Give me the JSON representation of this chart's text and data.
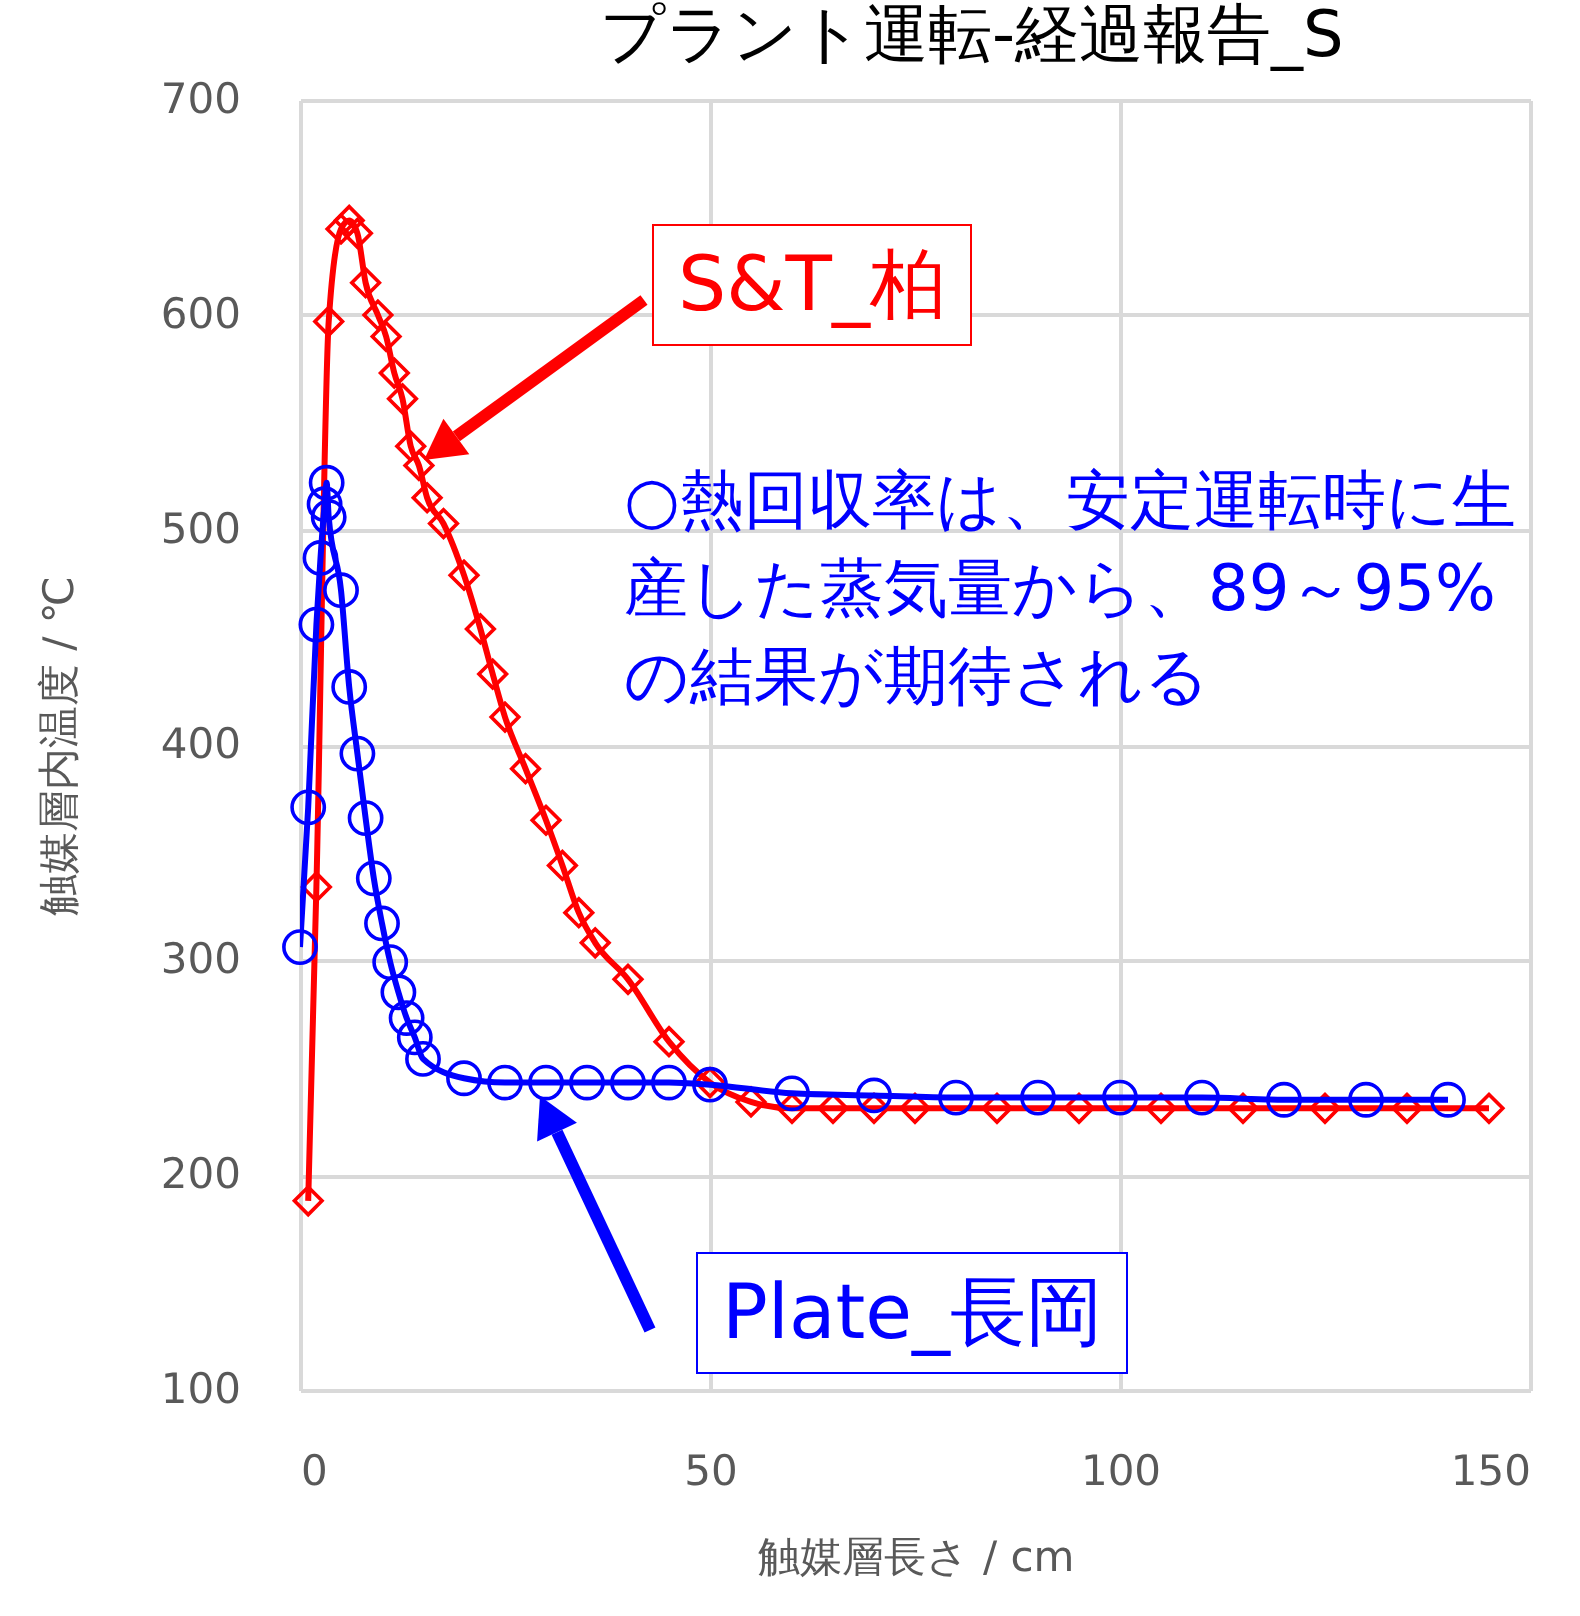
{
  "chart_data": {
    "type": "line",
    "title": "プラント運転-経過報告_S",
    "xlabel": "触媒層長さ / cm",
    "ylabel": "触媒層内温度 / ℃",
    "xlim": [
      0,
      150
    ],
    "xticks": [
      0,
      50,
      100,
      150
    ],
    "ylim": [
      100,
      700
    ],
    "yticks": [
      100,
      200,
      300,
      400,
      500,
      600,
      700
    ],
    "grid": true,
    "line_style": "solid",
    "annotations": [
      "○熱回収率は、安定運転時に生産した蒸気量から、89～95%の結果が期待される"
    ],
    "series": [
      {
        "name": "S&T_柏",
        "color": "#ff0000",
        "marker": "diamond",
        "x": [
          1,
          2,
          3.5,
          5,
          6,
          7,
          8,
          9.5,
          10.5,
          11.5,
          12.5,
          13.5,
          14.5,
          15.5,
          17.5,
          20,
          22,
          23.5,
          25,
          27.5,
          30,
          32,
          34,
          36,
          40,
          45,
          50,
          55,
          60,
          65,
          70,
          75,
          85,
          95,
          105,
          115,
          125,
          135,
          145
        ],
        "values": [
          188,
          334,
          597,
          640,
          644,
          638,
          615,
          600,
          590,
          573,
          561,
          539,
          530,
          515,
          503,
          479,
          454,
          433,
          413,
          389,
          365,
          344,
          322,
          308,
          291,
          262,
          243,
          234,
          231,
          231,
          231,
          231,
          231,
          231,
          231,
          231,
          231,
          231,
          231
        ]
      },
      {
        "name": "Plate_長岡",
        "color": "#0000ff",
        "marker": "circle",
        "x": [
          0,
          1,
          2,
          2.5,
          3,
          3.25,
          3.5,
          5,
          6,
          7,
          8,
          9,
          10,
          11,
          12,
          13,
          14,
          15,
          20,
          25,
          30,
          35,
          40,
          45,
          50,
          60,
          70,
          80,
          90,
          100,
          110,
          120,
          130,
          140
        ],
        "values": [
          306,
          371,
          456,
          487,
          512,
          522,
          506,
          472,
          427,
          396,
          366,
          338,
          317,
          299,
          285,
          273,
          264,
          254,
          245,
          243,
          243,
          243,
          243,
          243,
          242,
          238,
          237,
          236,
          236,
          236,
          236,
          235,
          235,
          235
        ]
      }
    ]
  }
}
